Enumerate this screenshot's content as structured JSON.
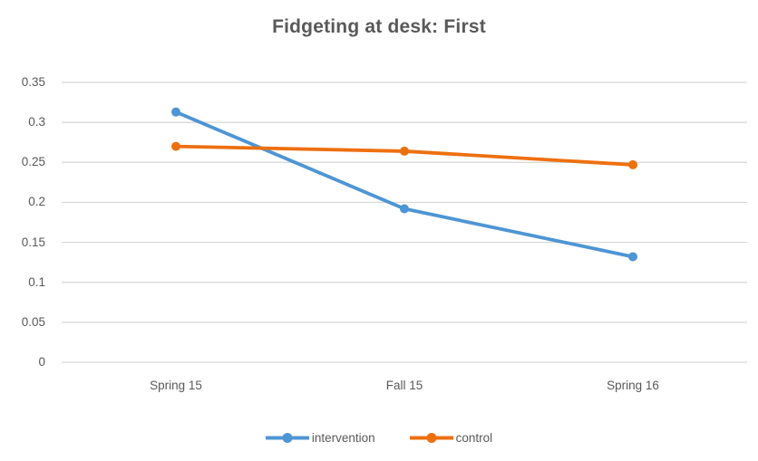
{
  "chart_data": {
    "type": "line",
    "title": "Fidgeting at desk: First",
    "categories": [
      "Spring 15",
      "Fall 15",
      "Spring 16"
    ],
    "series": [
      {
        "name": "intervention",
        "color": "#4E95D4",
        "values": [
          0.313,
          0.192,
          0.132
        ]
      },
      {
        "name": "control",
        "color": "#ED700F",
        "values": [
          0.27,
          0.264,
          0.247
        ]
      }
    ],
    "ylim": [
      0,
      0.35
    ],
    "ytick_step": 0.05,
    "ytick_labels": [
      "0",
      "0.05",
      "0.1",
      "0.15",
      "0.2",
      "0.25",
      "0.3",
      "0.35"
    ],
    "grid": true,
    "legend_position": "bottom",
    "colors": {
      "title_text": "#595959",
      "axis_text": "#595959",
      "gridline": "#D6D6D6",
      "background": "#FFFFFF"
    },
    "marker": "circle",
    "line_width": 3.8,
    "marker_radius": 5
  }
}
